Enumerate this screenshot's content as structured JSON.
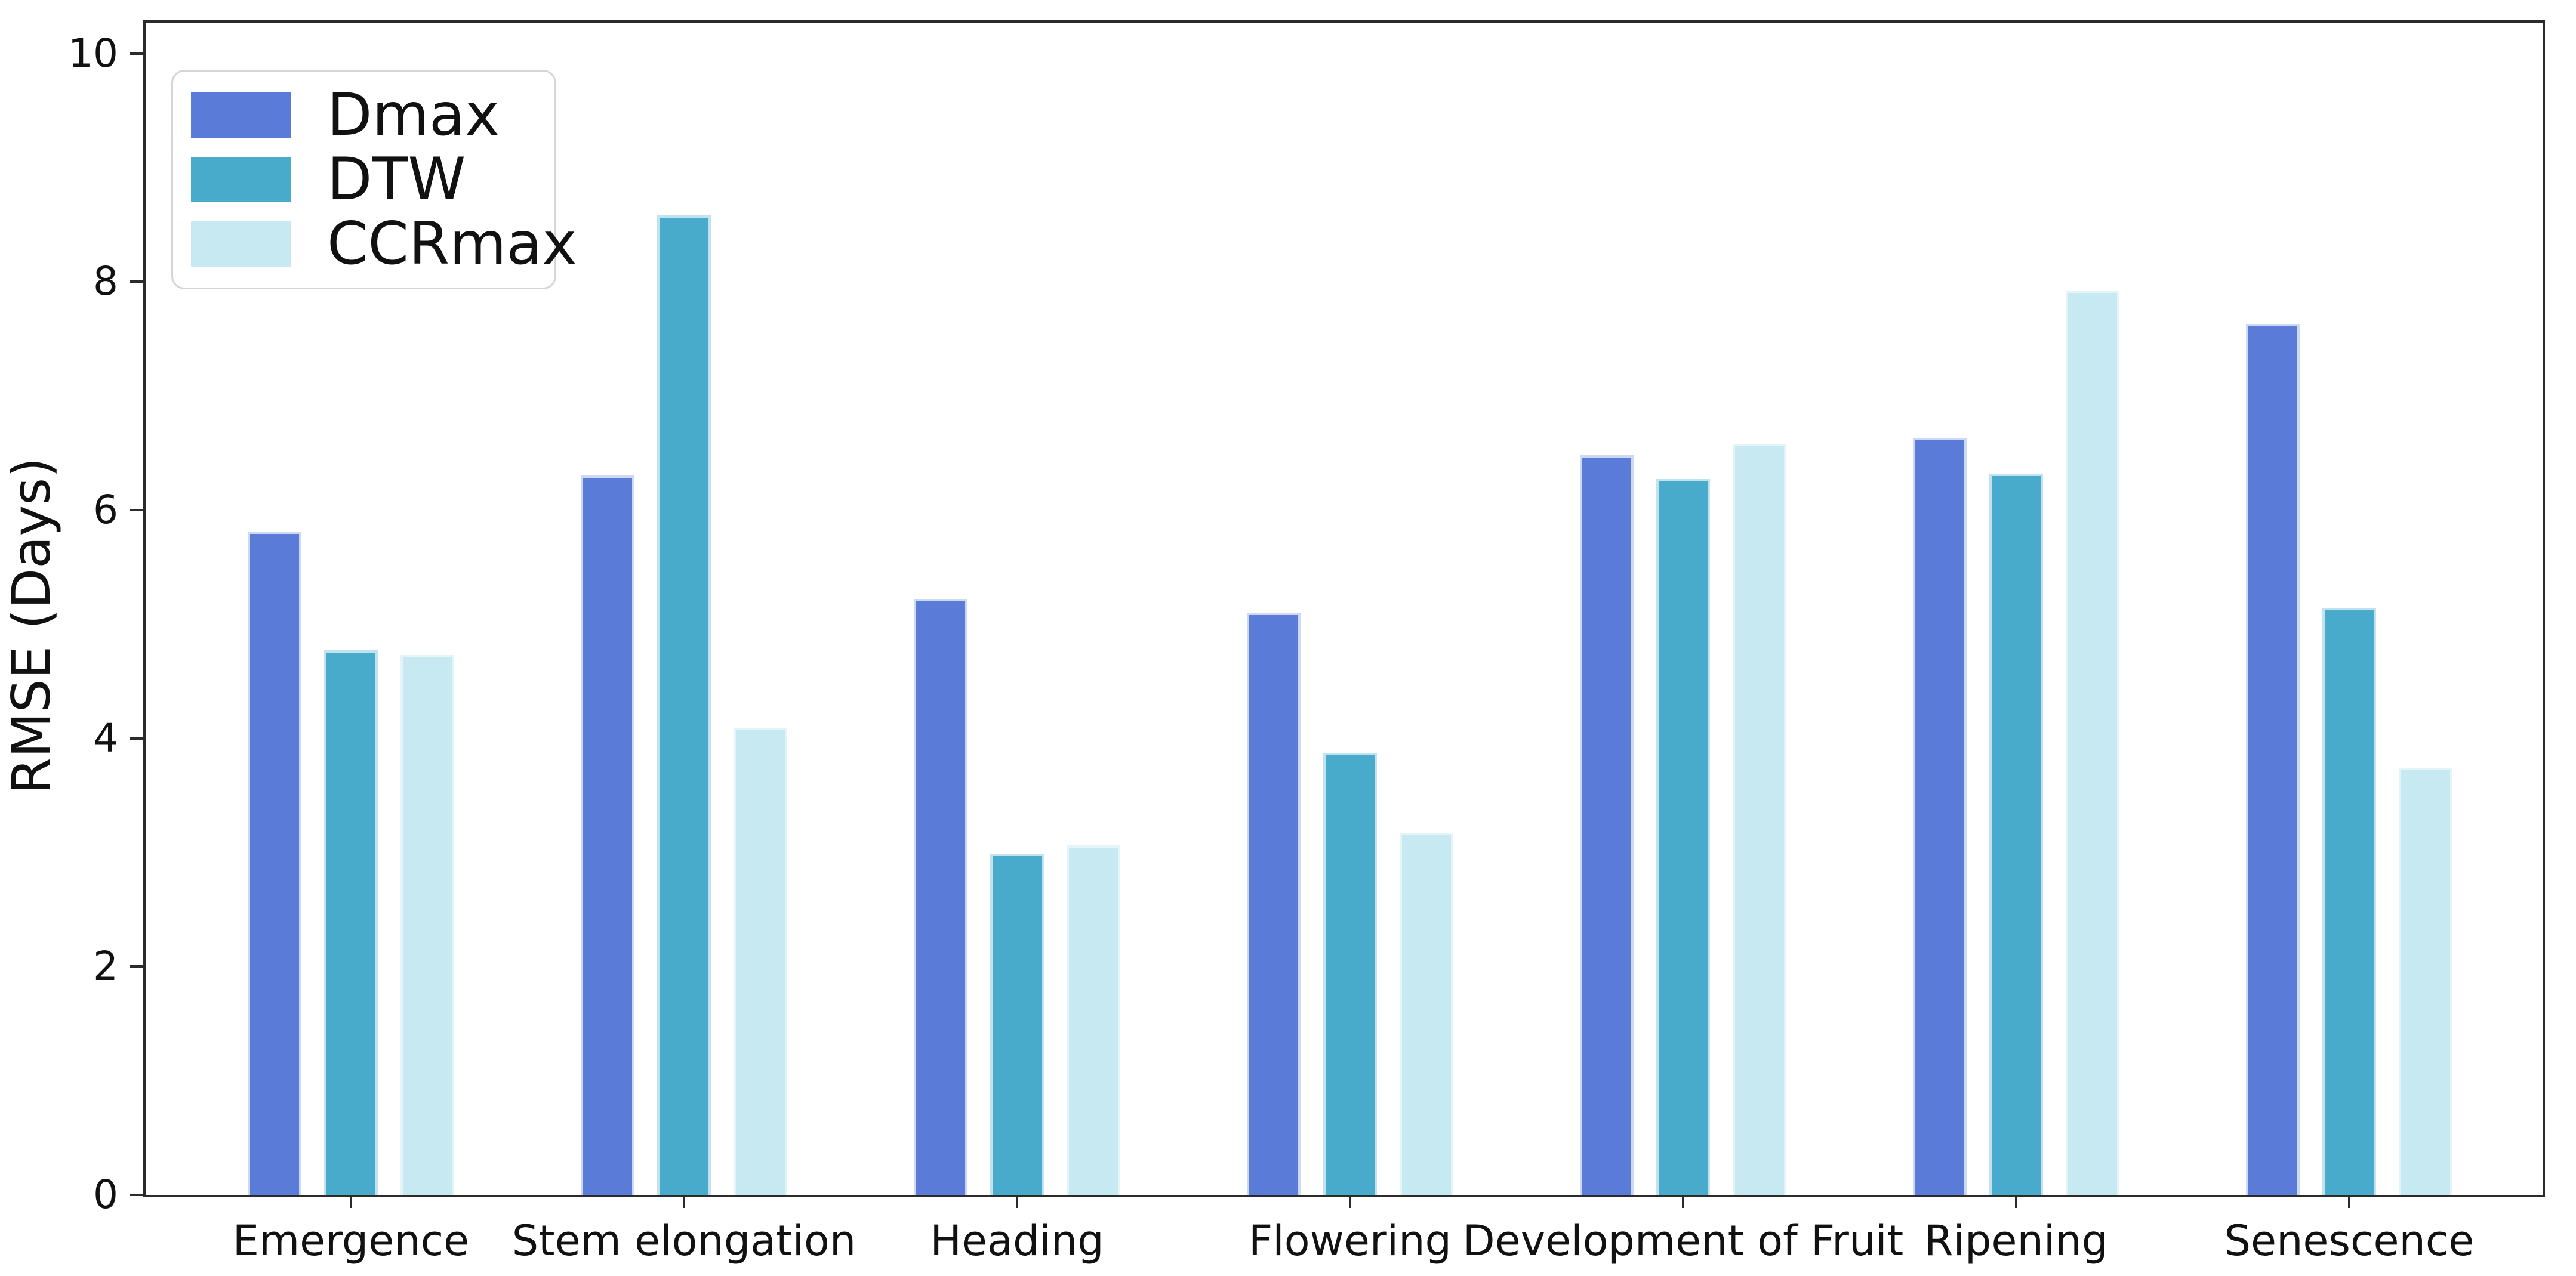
{
  "figure": {
    "background": "#ffffff"
  },
  "chart_data": {
    "type": "bar",
    "title": "",
    "xlabel": "",
    "ylabel": "RMSE (Days)",
    "categories": [
      "Emergence",
      "Stem elongation",
      "Heading",
      "Flowering",
      "Development of Fruit",
      "Ripening",
      "Senescence"
    ],
    "series": [
      {
        "name": "Dmax",
        "color": "#5a7cd8",
        "edge_color": "#cdd9f3",
        "values": [
          5.81,
          6.3,
          5.22,
          5.1,
          6.48,
          6.63,
          7.63
        ]
      },
      {
        "name": "DTW",
        "color": "#48abcb",
        "edge_color": "#c2e2ee",
        "values": [
          4.77,
          8.58,
          2.99,
          3.87,
          6.27,
          6.32,
          5.14
        ]
      },
      {
        "name": "CCRmax",
        "color": "#c6e9f2",
        "edge_color": "#e4f5f9",
        "values": [
          4.73,
          4.09,
          3.06,
          3.17,
          6.58,
          7.92,
          3.74
        ]
      }
    ],
    "ylim": [
      0,
      10.28
    ],
    "yticks": [
      0,
      2,
      4,
      6,
      8,
      10
    ],
    "grid": false,
    "legend_position": "upper left",
    "axis_color": "#2b2b2b",
    "text_color": "#111111"
  }
}
